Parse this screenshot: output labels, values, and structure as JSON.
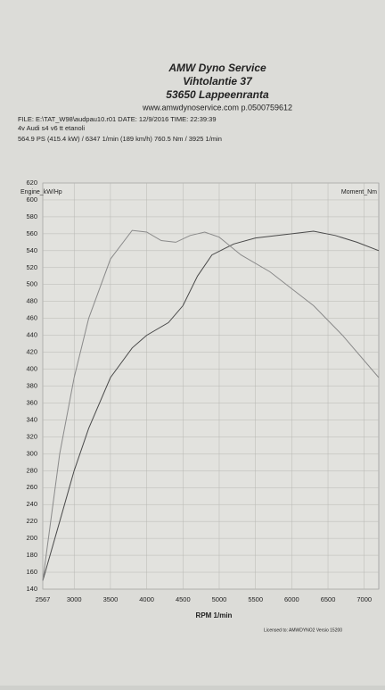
{
  "header": {
    "company": "AMW Dyno Service",
    "street": "Vihtolantie 37",
    "city": "53650 Lappeenranta",
    "contact": "www.amwdynoservice.com p.0500759612",
    "file_line": "FILE: E:\\TAT_W98\\audpau10.r01  DATE: 12/9/2016  TIME: 22:39:39",
    "car_line": "4v Audi s4 v6 tt etanoli",
    "result_line": "564.9 PS  (415.4 kW) / 6347 1/min (189 km/h)    760.5 Nm / 3925 1/min"
  },
  "chart_data": {
    "type": "line",
    "x_label": "RPM  1/min",
    "footer": "Licensed to: AMWDYNO2  Versio 15200",
    "xlim": [
      2567,
      7200
    ],
    "xticks": [
      2567,
      3000,
      3500,
      4000,
      4500,
      5000,
      5500,
      6000,
      6500,
      7000
    ],
    "ylim": [
      140,
      620
    ],
    "yticks": [
      140,
      160,
      180,
      200,
      220,
      240,
      260,
      280,
      300,
      320,
      340,
      360,
      380,
      400,
      420,
      440,
      460,
      480,
      500,
      520,
      540,
      560,
      580,
      600,
      620
    ],
    "grid": true,
    "series": [
      {
        "name": "Engine_kW/Hp",
        "color": "#4a4a4a",
        "x": [
          2567,
          2800,
          3000,
          3200,
          3500,
          3800,
          4000,
          4300,
          4500,
          4700,
          4900,
          5200,
          5500,
          6000,
          6300,
          6600,
          6900,
          7200
        ],
        "values": [
          150,
          220,
          280,
          330,
          390,
          425,
          440,
          455,
          475,
          510,
          535,
          548,
          555,
          560,
          563,
          558,
          550,
          540
        ]
      },
      {
        "name": "Moment_Nm",
        "color": "#8a8a8a",
        "x": [
          2567,
          2800,
          3000,
          3200,
          3500,
          3800,
          4000,
          4200,
          4400,
          4600,
          4800,
          5000,
          5300,
          5700,
          6000,
          6300,
          6700,
          7200
        ],
        "values": [
          150,
          300,
          390,
          460,
          530,
          564,
          562,
          552,
          550,
          558,
          562,
          556,
          535,
          515,
          495,
          475,
          440,
          390
        ]
      }
    ]
  }
}
